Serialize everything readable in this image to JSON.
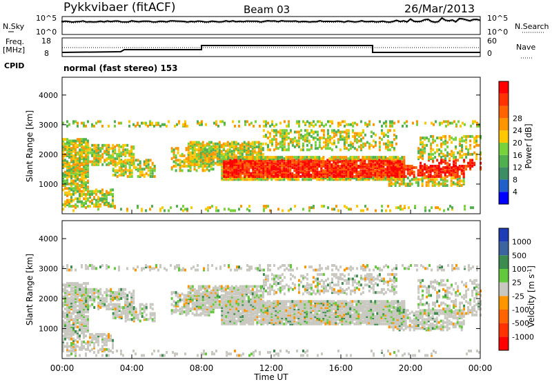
{
  "header": {
    "station": "Pykkvibaer (fitACF)",
    "beam": "Beam 03",
    "date": "26/Mar/2013"
  },
  "noise_panel": {
    "left_label": "N.Sky",
    "left_ticks": [
      "10^5",
      "10^0"
    ],
    "right_label": "N.Search",
    "right_ticks": [
      "10^5",
      "10^0"
    ]
  },
  "freq_panel": {
    "left_label_1": "Freq.",
    "left_label_2": "[MHz]",
    "left_ticks": [
      "18",
      "8"
    ],
    "right_label": "Nave",
    "right_ticks": [
      "60",
      "0"
    ]
  },
  "cpid": {
    "label": "CPID",
    "text": "normal (fast stereo) 153"
  },
  "colors": {
    "power": [
      "#0000ff",
      "#2060c8",
      "#3c8c64",
      "#50b050",
      "#78d23c",
      "#ffc800",
      "#ff9600",
      "#ff6400",
      "#ff3200",
      "#ff0000"
    ],
    "velocity": [
      "#1e3cb4",
      "#3c64a0",
      "#3c8c50",
      "#64c83c",
      "#c8c8c0",
      "#ff9600",
      "#ff6400",
      "#ff3200",
      "#ff0000"
    ]
  },
  "chart_data": [
    {
      "type": "heatmap",
      "title": "Power",
      "xlabel": "Time UT",
      "ylabel": "Slant Range [km]",
      "x_ticks": [
        "00:00",
        "04:00",
        "08:00",
        "12:00",
        "16:00",
        "20:00",
        "00:00"
      ],
      "y_ticks": [
        "1000",
        "2000",
        "3000",
        "4000"
      ],
      "ylim": [
        0,
        4600
      ],
      "colorbar_label": "Power [dB]",
      "colorbar_ticks": [
        "4",
        "8",
        "12",
        "16",
        "20",
        "24",
        "28"
      ]
    },
    {
      "type": "heatmap",
      "title": "Velocity",
      "xlabel": "Time UT",
      "ylabel": "Slant Range [km]",
      "x_ticks": [
        "00:00",
        "04:00",
        "08:00",
        "12:00",
        "16:00",
        "20:00",
        "00:00"
      ],
      "y_ticks": [
        "1000",
        "2000",
        "3000",
        "4000"
      ],
      "ylim": [
        0,
        4600
      ],
      "colorbar_label": "Velocity [m s",
      "colorbar_label_sup": "-1",
      "colorbar_label_end": "]",
      "colorbar_ticks": [
        "1000",
        "500",
        "100",
        "25",
        "-25",
        "-100",
        "-500",
        "-1000"
      ]
    }
  ]
}
